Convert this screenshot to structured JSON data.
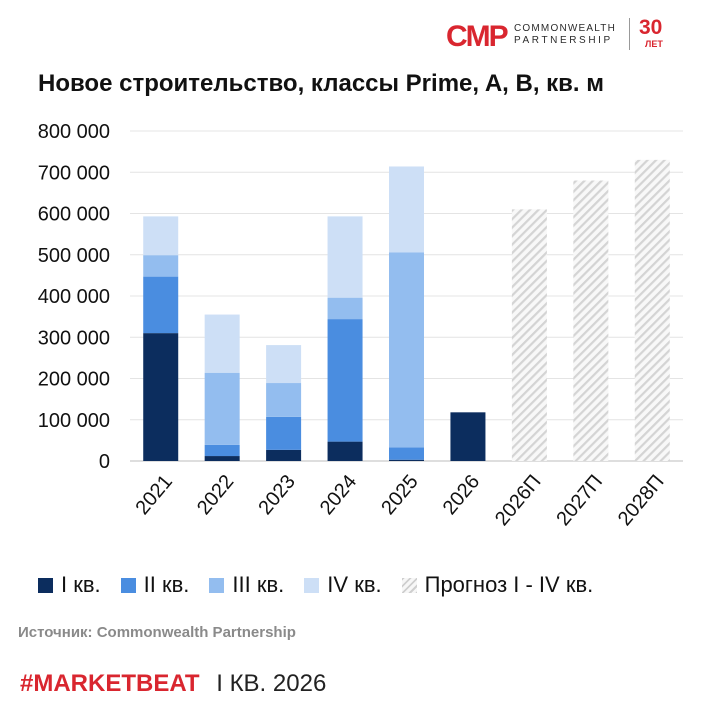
{
  "logo": {
    "mark": "CMP",
    "name_line1": "COMMONWEALTH",
    "name_line2": "PARTNERSHIP",
    "years": "30",
    "years_label": "ЛЕТ"
  },
  "title": "Новое строительство, классы Prime, A, B, кв. м",
  "legend": {
    "q1": "I кв.",
    "q2": "II кв.",
    "q3": "III кв.",
    "q4": "IV кв.",
    "forecast": "Прогноз I - IV кв."
  },
  "source": "Источник: Commonwealth Partnership",
  "footer": {
    "marketbeat": "#MARKETBEAT",
    "quarter": "I КВ. 2026"
  },
  "colors": {
    "q1": "#0c2d5e",
    "q2": "#4a8de0",
    "q3": "#93bdef",
    "q4": "#cddff6",
    "forecast_hatch": "#cfcfcf",
    "brand": "#d9262f"
  },
  "chart_data": {
    "type": "bar",
    "stacked": true,
    "title": "Новое строительство, классы Prime, A, B, кв. м",
    "categories": [
      "2021",
      "2022",
      "2023",
      "2024",
      "2025",
      "2026",
      "2026П",
      "2027П",
      "2028П"
    ],
    "series": [
      {
        "name": "I кв.",
        "values": [
          310000,
          12000,
          27000,
          47000,
          3000,
          118000,
          0,
          0,
          0
        ]
      },
      {
        "name": "II кв.",
        "values": [
          137000,
          27000,
          80000,
          297000,
          30000,
          0,
          0,
          0,
          0
        ]
      },
      {
        "name": "III кв.",
        "values": [
          52000,
          175000,
          82000,
          52000,
          473000,
          0,
          0,
          0,
          0
        ]
      },
      {
        "name": "IV кв.",
        "values": [
          94000,
          141000,
          92000,
          197000,
          208000,
          0,
          0,
          0,
          0
        ]
      },
      {
        "name": "Прогноз I - IV кв.",
        "values": [
          0,
          0,
          0,
          0,
          0,
          0,
          610000,
          680000,
          730000
        ]
      }
    ],
    "y_ticks": [
      "0",
      "100 000",
      "200 000",
      "300 000",
      "400 000",
      "500 000",
      "600 000",
      "700 000",
      "800 000"
    ],
    "ylim": [
      0,
      800000
    ],
    "grid": true,
    "legend_position": "bottom"
  }
}
